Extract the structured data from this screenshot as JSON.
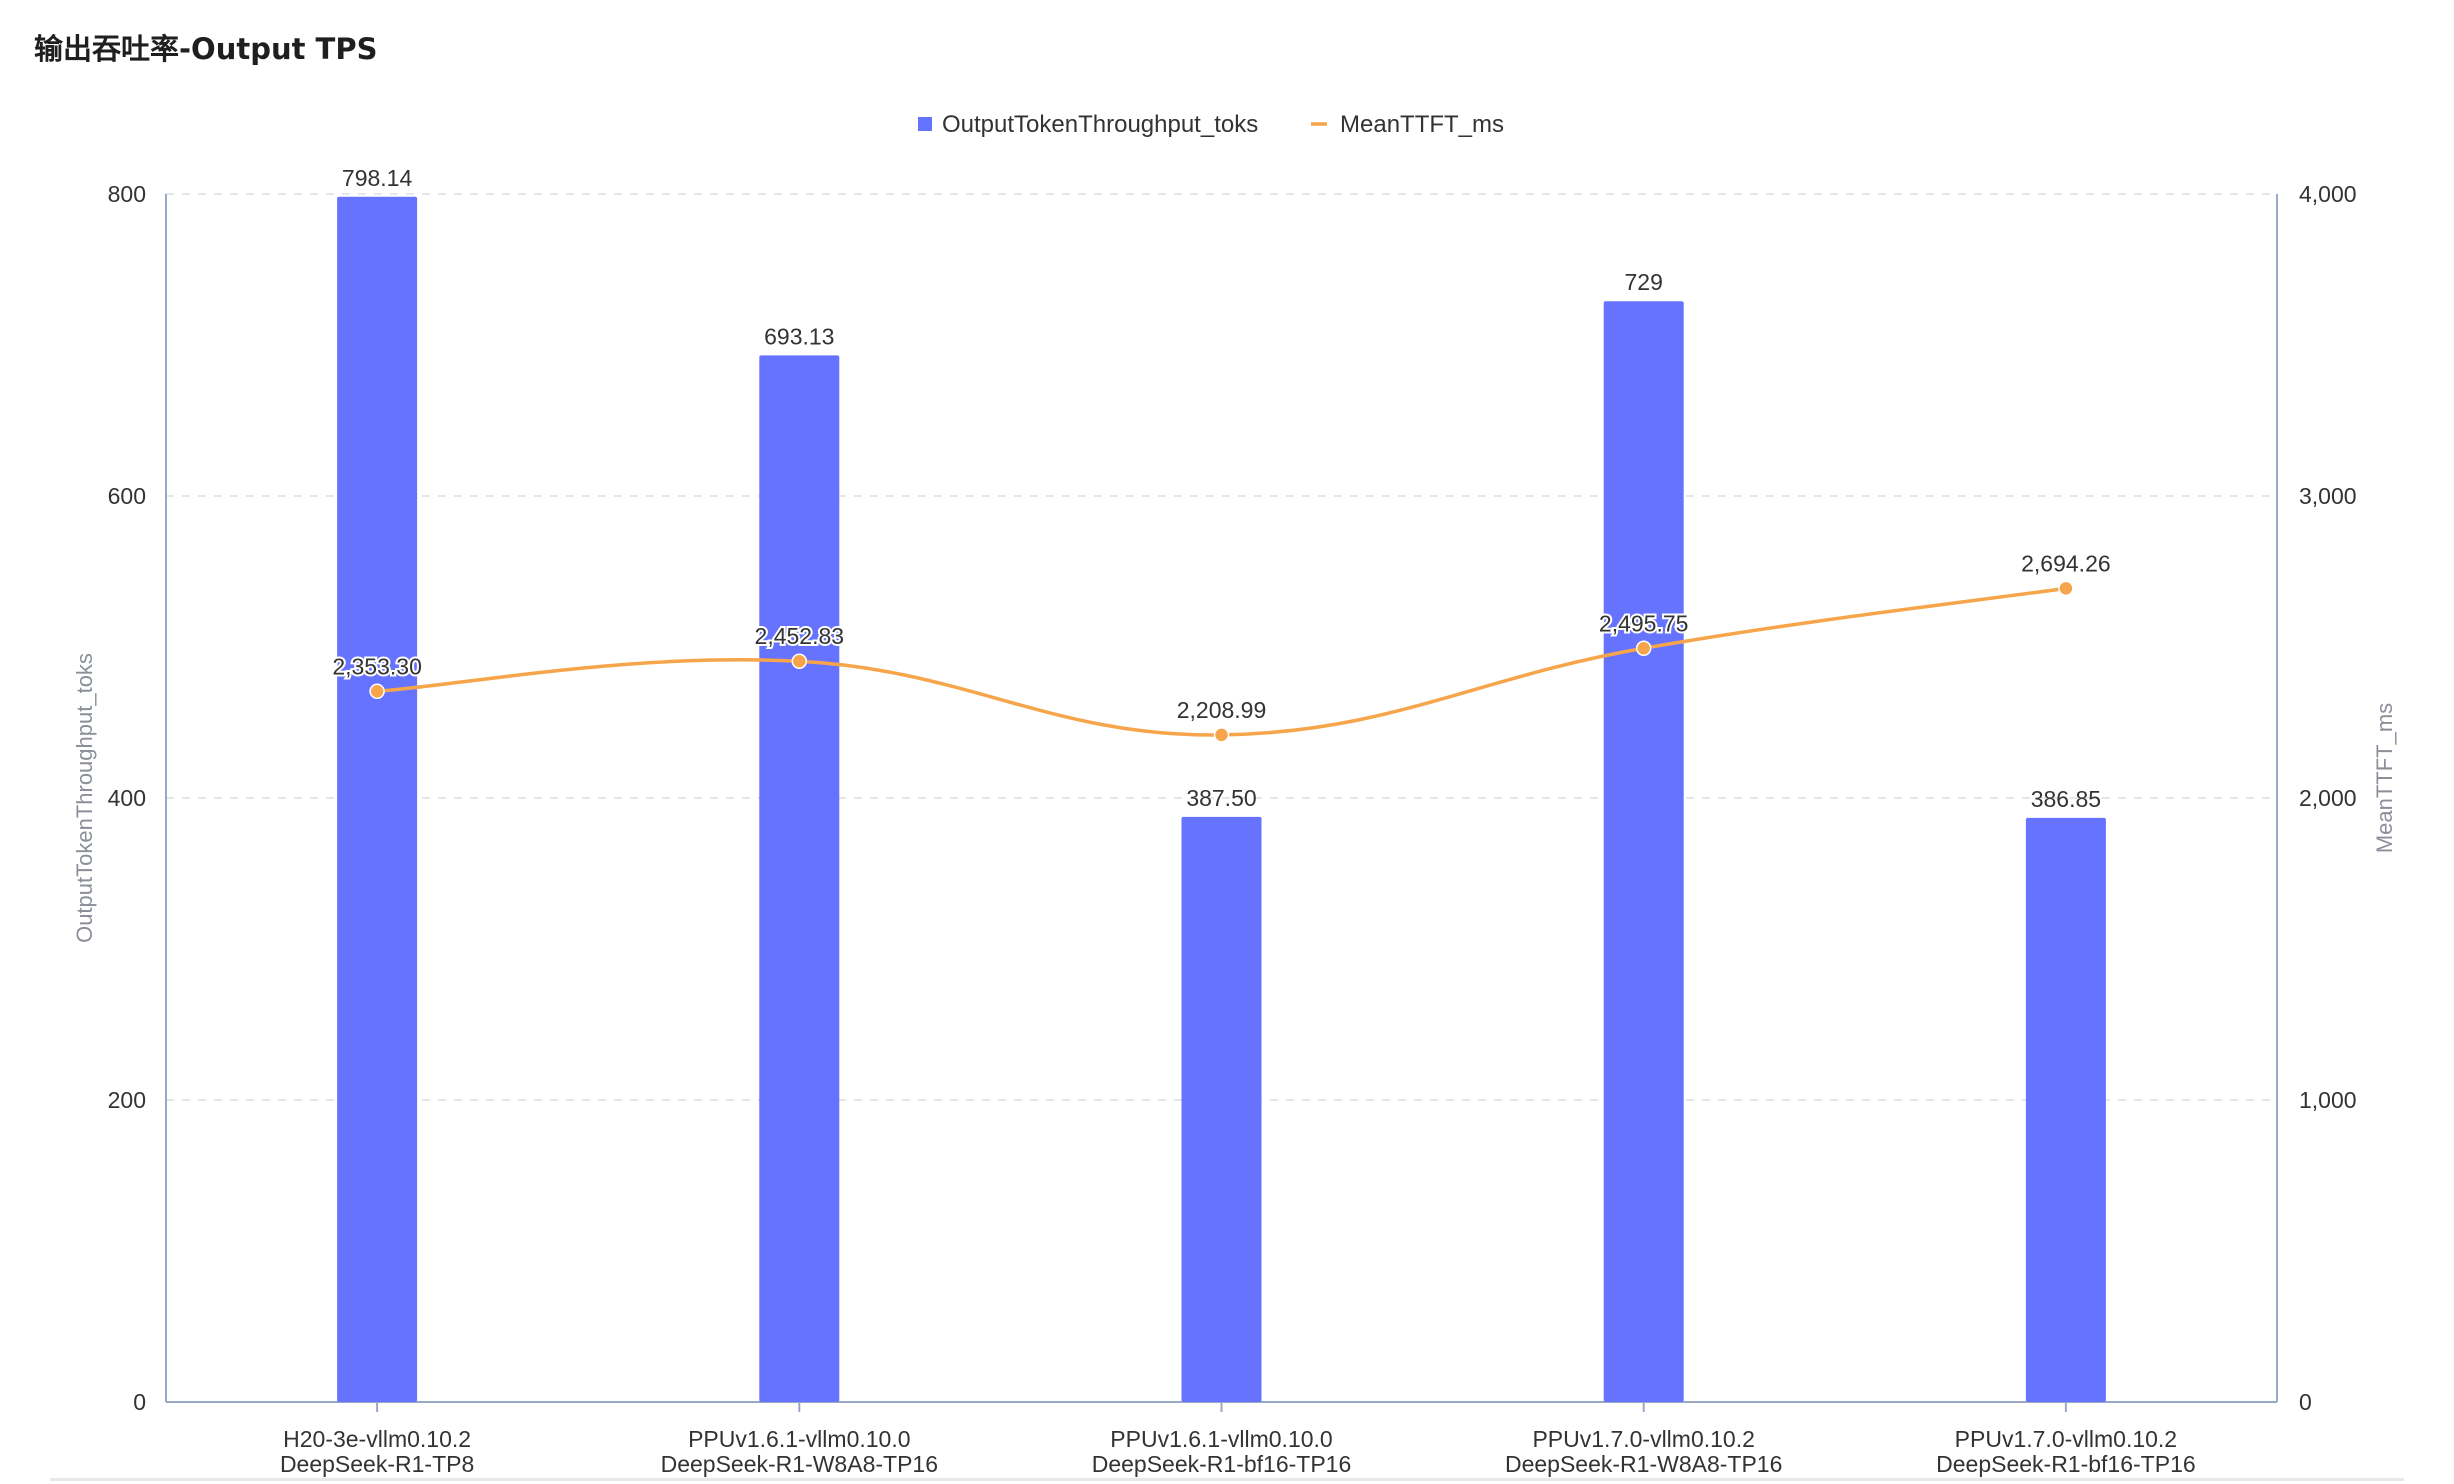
{
  "panel": {
    "title": "输出吞吐率-Output TPS"
  },
  "colors": {
    "bar": "#6673FF",
    "line": "#F6A54A",
    "axis": "#9AA8C7",
    "grid": "#E6E6E6",
    "text": "#333333",
    "axis_title": "#8A8F99"
  },
  "chart_data": {
    "type": "bar",
    "categories": [
      [
        "H20-3e-vllm0.10.2",
        "DeepSeek-R1-TP8"
      ],
      [
        "PPUv1.6.1-vllm0.10.0",
        "DeepSeek-R1-W8A8-TP16"
      ],
      [
        "PPUv1.6.1-vllm0.10.0",
        "DeepSeek-R1-bf16-TP16"
      ],
      [
        "PPUv1.7.0-vllm0.10.2",
        "DeepSeek-R1-W8A8-TP16"
      ],
      [
        "PPUv1.7.0-vllm0.10.2",
        "DeepSeek-R1-bf16-TP16"
      ]
    ],
    "series": [
      {
        "name": "OutputTokenThroughput_toks",
        "type": "bar",
        "axis": "left",
        "values": [
          798.14,
          693.13,
          387.5,
          729,
          386.85
        ],
        "labels": [
          "798.14",
          "693.13",
          "387.50",
          "729",
          "386.85"
        ]
      },
      {
        "name": "MeanTTFT_ms",
        "type": "line",
        "axis": "right",
        "values": [
          2353.3,
          2452.83,
          2208.99,
          2495.75,
          2694.26
        ],
        "labels": [
          "2,353.30",
          "2,452.83",
          "2,208.99",
          "2,495.75",
          "2,694.26"
        ]
      }
    ],
    "ylabel": "OutputTokenThroughput_toks",
    "ylim": [
      0,
      800
    ],
    "yticks": [
      "0",
      "200",
      "400",
      "600",
      "800"
    ],
    "ylabel_right": "MeanTTFT_ms",
    "ylim_right": [
      0,
      4000
    ],
    "yticks_right": [
      "0",
      "1,000",
      "2,000",
      "3,000",
      "4,000"
    ],
    "grid": true,
    "legend": "top-center"
  }
}
